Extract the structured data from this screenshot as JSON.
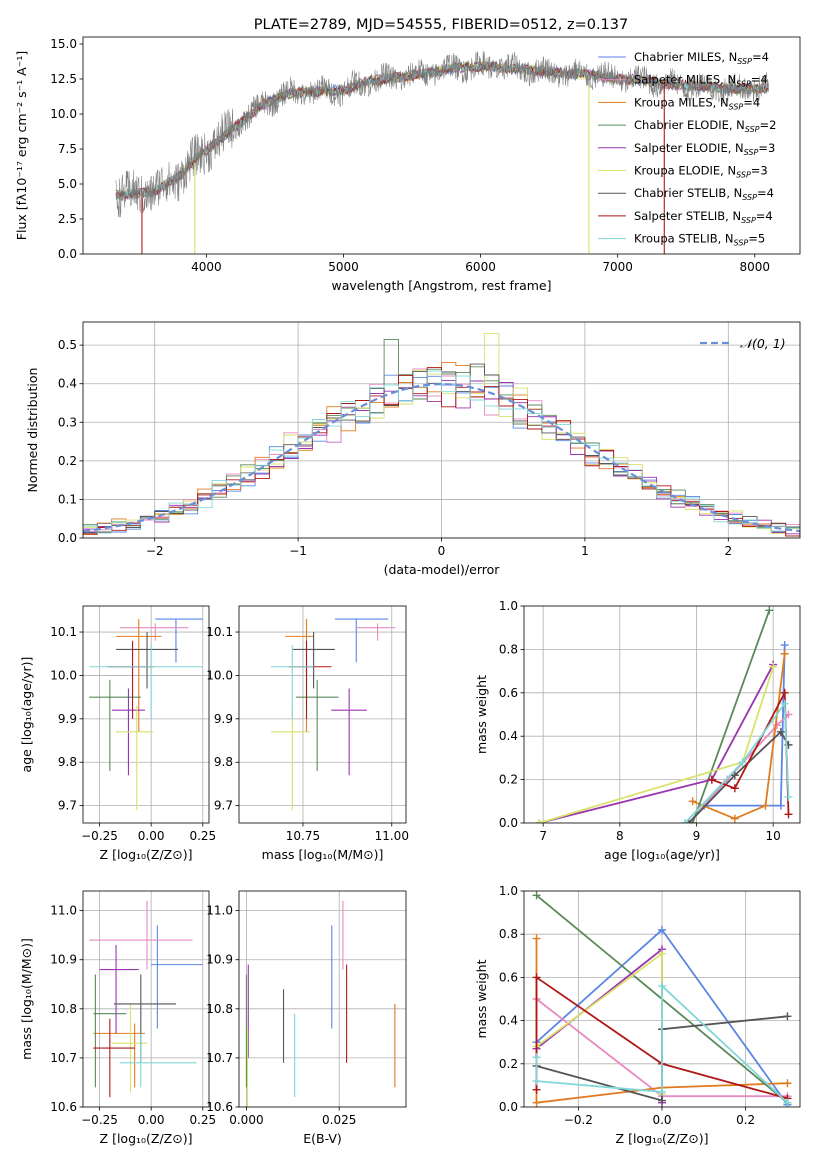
{
  "colors": {
    "Chabrier MILES": "#5b86e5",
    "Salpeter MILES": "#e88bc2",
    "Kroupa MILES": "#e07b20",
    "Chabrier ELODIE": "#5a8a5a",
    "Salpeter ELODIE": "#9a34b0",
    "Kroupa ELODIE": "#d9e26a",
    "Chabrier STELIB": "#555555",
    "Salpeter STELIB": "#b01818",
    "Kroupa STELIB": "#80d6d8",
    "normal": "#6a8fd8",
    "data": "#777777"
  },
  "chart_data": [
    {
      "panel": "spectrum",
      "type": "line",
      "title": "PLATE=2789, MJD=54555, FIBERID=0512, z=0.137",
      "xlabel": "wavelength [Angstrom, rest frame]",
      "ylabel": "Flux [f$_{\\lambda}$10$^{-17}$ erg cm$^{-2}$ s$^{-1}$ A$^{-1}$]",
      "ylabel_display": "Flux [fλ10⁻¹⁷ erg cm⁻² s⁻¹ A⁻¹]",
      "xlim": [
        3100,
        8330
      ],
      "ylim": [
        0,
        15.5
      ],
      "xticks": [
        4000,
        5000,
        6000,
        7000,
        8000
      ],
      "yticks": [
        0.0,
        2.5,
        5.0,
        7.5,
        10.0,
        12.5,
        15.0
      ],
      "legend_location": "upper right",
      "legend": [
        {
          "model": "Chabrier MILES",
          "label": "Chabrier MILES, N",
          "sub": "SSP",
          "n": "=4"
        },
        {
          "model": "Salpeter MILES",
          "label": "Salpeter MILES, N",
          "sub": "SSP",
          "n": "=4"
        },
        {
          "model": "Kroupa MILES",
          "label": "Kroupa MILES, N",
          "sub": "SSP",
          "n": "=4"
        },
        {
          "model": "Chabrier ELODIE",
          "label": "Chabrier ELODIE, N",
          "sub": "SSP",
          "n": "=2"
        },
        {
          "model": "Salpeter ELODIE",
          "label": "Salpeter ELODIE, N",
          "sub": "SSP",
          "n": "=3"
        },
        {
          "model": "Kroupa ELODIE",
          "label": "Kroupa ELODIE, N",
          "sub": "SSP",
          "n": "=3"
        },
        {
          "model": "Chabrier STELIB",
          "label": "Chabrier STELIB, N",
          "sub": "SSP",
          "n": "=4"
        },
        {
          "model": "Salpeter STELIB",
          "label": "Salpeter STELIB, N",
          "sub": "SSP",
          "n": "=4"
        },
        {
          "model": "Kroupa STELIB",
          "label": "Kroupa STELIB, N",
          "sub": "SSP",
          "n": "=5"
        }
      ],
      "data_range": [
        3340,
        8100
      ],
      "continuum": {
        "x": [
          3340,
          3600,
          3800,
          3900,
          4000,
          4200,
          4400,
          4600,
          4800,
          5000,
          5200,
          5400,
          5600,
          5800,
          6000,
          6200,
          6400,
          6600,
          6800,
          7000,
          7200,
          7400,
          7600,
          7800,
          8000,
          8100
        ],
        "y": [
          4.2,
          4.4,
          5.5,
          6.6,
          7.4,
          9.0,
          10.6,
          11.5,
          11.6,
          11.7,
          12.4,
          12.6,
          12.9,
          13.3,
          13.4,
          13.3,
          13.1,
          12.9,
          12.8,
          12.5,
          12.4,
          12.1,
          12.0,
          11.8,
          11.8,
          11.9
        ]
      },
      "spikes": [
        {
          "x": 3530,
          "y0": 0,
          "y1": 4.0,
          "color": "#b01818"
        },
        {
          "x": 3915,
          "y0": 0,
          "y1": 6.5,
          "color": "#d9e26a"
        },
        {
          "x": 6790,
          "y0": 0,
          "y1": 12.0,
          "color": "#d9e26a"
        },
        {
          "x": 7340,
          "y0": 0,
          "y1": 12.4,
          "color": "#b01818"
        }
      ]
    },
    {
      "panel": "residuals",
      "type": "histogram",
      "xlabel": "(data-model)/error",
      "ylabel": "Normed distribution",
      "xlim": [
        -2.5,
        2.5
      ],
      "ylim": [
        0,
        0.56
      ],
      "xticks": [
        -2,
        -1,
        0,
        1,
        2
      ],
      "yticks": [
        0.0,
        0.1,
        0.2,
        0.3,
        0.4,
        0.5
      ],
      "grid": true,
      "bin_width": 0.1,
      "legend_location": "upper right",
      "legend": [
        {
          "label": "𝒩(0, 1)",
          "style": "dashed",
          "color_key": "normal"
        }
      ],
      "reference_curve": "normal(0,1)"
    },
    {
      "panel": "age_vs_Z",
      "type": "errorbar",
      "xlabel": "Z [log₁₀(Z/Z⊙)]",
      "ylabel": "age  [log₁₀(age/yr)]",
      "xlim": [
        -0.33,
        0.28
      ],
      "ylim": [
        9.66,
        10.16
      ],
      "xticks": [
        -0.25,
        0.0,
        0.25
      ],
      "xticklabels": [
        "−0.25",
        "0.00",
        "0.25"
      ],
      "yticks": [
        9.7,
        9.8,
        9.9,
        10.0,
        10.1
      ],
      "grid": true,
      "points": [
        {
          "model": "Chabrier MILES",
          "x": 0.12,
          "xerr": [
            0.1,
            0.13
          ],
          "y": 10.13,
          "yerr": [
            0.1,
            0.0
          ]
        },
        {
          "model": "Salpeter MILES",
          "x": 0.02,
          "xerr": [
            0.17,
            0.16
          ],
          "y": 10.11,
          "yerr": [
            0.03,
            0.01
          ]
        },
        {
          "model": "Kroupa MILES",
          "x": -0.06,
          "xerr": [
            0.11,
            0.11
          ],
          "y": 10.09,
          "yerr": [
            0.22,
            0.04
          ]
        },
        {
          "model": "Chabrier ELODIE",
          "x": -0.2,
          "xerr": [
            0.1,
            0.15
          ],
          "y": 9.95,
          "yerr": [
            0.17,
            0.04
          ]
        },
        {
          "model": "Salpeter ELODIE",
          "x": -0.11,
          "xerr": [
            0.08,
            0.08
          ],
          "y": 9.92,
          "yerr": [
            0.15,
            0.05
          ]
        },
        {
          "model": "Kroupa ELODIE",
          "x": -0.07,
          "xerr": [
            0.1,
            0.08
          ],
          "y": 9.87,
          "yerr": [
            0.18,
            0.06
          ]
        },
        {
          "model": "Chabrier STELIB",
          "x": -0.02,
          "xerr": [
            0.15,
            0.15
          ],
          "y": 10.06,
          "yerr": [
            0.09,
            0.04
          ]
        },
        {
          "model": "Salpeter STELIB",
          "x": -0.09,
          "xerr": [
            0.12,
            0.1
          ],
          "y": 10.02,
          "yerr": [
            0.12,
            0.06
          ]
        },
        {
          "model": "Kroupa STELIB",
          "x": 0.0,
          "xerr": [
            0.3,
            0.25
          ],
          "y": 10.02,
          "yerr": [
            0.12,
            0.05
          ]
        }
      ]
    },
    {
      "panel": "age_vs_mass",
      "type": "errorbar",
      "xlabel": "mass [log₁₀(M/M⊙)]",
      "ylabel": "",
      "xlim": [
        10.57,
        11.04
      ],
      "ylim": [
        9.66,
        10.16
      ],
      "xticks": [
        10.75,
        11.0
      ],
      "xticklabels": [
        "10.75",
        "11.00"
      ],
      "yticks": [
        9.7,
        9.8,
        9.9,
        10.0,
        10.1
      ],
      "grid": true,
      "points": [
        {
          "model": "Chabrier MILES",
          "x": 10.9,
          "xerr": [
            0.06,
            0.09
          ],
          "y": 10.13,
          "yerr": [
            0.1,
            0.0
          ]
        },
        {
          "model": "Salpeter MILES",
          "x": 10.96,
          "xerr": [
            0.06,
            0.05
          ],
          "y": 10.11,
          "yerr": [
            0.03,
            0.01
          ]
        },
        {
          "model": "Kroupa MILES",
          "x": 10.76,
          "xerr": [
            0.06,
            0.02
          ],
          "y": 10.09,
          "yerr": [
            0.22,
            0.04
          ]
        },
        {
          "model": "Chabrier ELODIE",
          "x": 10.79,
          "xerr": [
            0.06,
            0.06
          ],
          "y": 9.95,
          "yerr": [
            0.17,
            0.04
          ]
        },
        {
          "model": "Salpeter ELODIE",
          "x": 10.88,
          "xerr": [
            0.05,
            0.05
          ],
          "y": 9.92,
          "yerr": [
            0.15,
            0.05
          ]
        },
        {
          "model": "Kroupa ELODIE",
          "x": 10.72,
          "xerr": [
            0.06,
            0.05
          ],
          "y": 9.87,
          "yerr": [
            0.18,
            0.06
          ]
        },
        {
          "model": "Chabrier STELIB",
          "x": 10.78,
          "xerr": [
            0.06,
            0.06
          ],
          "y": 10.06,
          "yerr": [
            0.09,
            0.04
          ]
        },
        {
          "model": "Salpeter STELIB",
          "x": 10.76,
          "xerr": [
            0.05,
            0.07
          ],
          "y": 10.02,
          "yerr": [
            0.12,
            0.06
          ]
        },
        {
          "model": "Kroupa STELIB",
          "x": 10.72,
          "xerr": [
            0.06,
            0.06
          ],
          "y": 10.02,
          "yerr": [
            0.12,
            0.05
          ]
        }
      ]
    },
    {
      "panel": "weight_vs_age",
      "type": "line",
      "xlabel": "age  [log₁₀(age/yr)]",
      "ylabel": "mass weight",
      "xlim": [
        6.75,
        10.35
      ],
      "ylim": [
        0,
        1.0
      ],
      "xticks": [
        7,
        8,
        9,
        10
      ],
      "yticks": [
        0.0,
        0.2,
        0.4,
        0.6,
        0.8,
        1.0
      ],
      "grid": true,
      "series": [
        {
          "model": "Chabrier MILES",
          "x": [
            8.9,
            9.1,
            10.1,
            10.15
          ],
          "y": [
            0.0,
            0.08,
            0.08,
            0.82
          ]
        },
        {
          "model": "Salpeter MILES",
          "x": [
            8.9,
            9.4,
            10.05,
            10.2
          ],
          "y": [
            0.0,
            0.2,
            0.45,
            0.5
          ]
        },
        {
          "model": "Kroupa MILES",
          "x": [
            8.95,
            9.5,
            9.9,
            10.15
          ],
          "y": [
            0.1,
            0.02,
            0.08,
            0.78
          ]
        },
        {
          "model": "Chabrier ELODIE",
          "x": [
            8.95,
            9.95
          ],
          "y": [
            0.0,
            0.98
          ]
        },
        {
          "model": "Salpeter ELODIE",
          "x": [
            6.95,
            9.2,
            10.0
          ],
          "y": [
            0.0,
            0.2,
            0.73
          ]
        },
        {
          "model": "Kroupa ELODIE",
          "x": [
            6.95,
            9.6,
            10.0
          ],
          "y": [
            0.0,
            0.28,
            0.72
          ]
        },
        {
          "model": "Chabrier STELIB",
          "x": [
            8.9,
            9.5,
            10.1,
            10.2
          ],
          "y": [
            0.0,
            0.22,
            0.42,
            0.36
          ]
        },
        {
          "model": "Salpeter STELIB",
          "x": [
            9.2,
            9.5,
            10.15,
            10.2
          ],
          "y": [
            0.2,
            0.16,
            0.6,
            0.04
          ]
        },
        {
          "model": "Kroupa STELIB",
          "x": [
            8.85,
            9.6,
            10.15,
            10.2
          ],
          "y": [
            0.0,
            0.28,
            0.55,
            0.12
          ]
        }
      ]
    },
    {
      "panel": "mass_vs_Z",
      "type": "errorbar",
      "xlabel": "Z [log₁₀(Z/Z⊙)]",
      "ylabel": "mass [log₁₀(M/M⊙)]",
      "xlim": [
        -0.33,
        0.28
      ],
      "ylim": [
        10.6,
        11.04
      ],
      "xticks": [
        -0.25,
        0.0,
        0.25
      ],
      "xticklabels": [
        "−0.25",
        "0.00",
        "0.25"
      ],
      "yticks": [
        10.6,
        10.7,
        10.8,
        10.9,
        11.0
      ],
      "yticklabels": [
        "10.6",
        "10.7",
        "10.8",
        "10.9",
        "11.0"
      ],
      "grid": true,
      "points": [
        {
          "model": "Chabrier MILES",
          "x": 0.03,
          "xerr": [
            0.03,
            0.22
          ],
          "y": 10.89,
          "yerr": [
            0.13,
            0.08
          ]
        },
        {
          "model": "Salpeter MILES",
          "x": -0.02,
          "xerr": [
            0.28,
            0.22
          ],
          "y": 10.94,
          "yerr": [
            0.06,
            0.08
          ]
        },
        {
          "model": "Kroupa MILES",
          "x": -0.08,
          "xerr": [
            0.2,
            0.05
          ],
          "y": 10.75,
          "yerr": [
            0.11,
            0.02
          ]
        },
        {
          "model": "Chabrier ELODIE",
          "x": -0.27,
          "xerr": [
            0.01,
            0.15
          ],
          "y": 10.79,
          "yerr": [
            0.15,
            0.08
          ]
        },
        {
          "model": "Salpeter ELODIE",
          "x": -0.17,
          "xerr": [
            0.08,
            0.11
          ],
          "y": 10.88,
          "yerr": [
            0.13,
            0.05
          ]
        },
        {
          "model": "Kroupa ELODIE",
          "x": -0.1,
          "xerr": [
            0.09,
            0.08
          ],
          "y": 10.73,
          "yerr": [
            0.1,
            0.08
          ]
        },
        {
          "model": "Chabrier STELIB",
          "x": -0.05,
          "xerr": [
            0.13,
            0.17
          ],
          "y": 10.81,
          "yerr": [
            0.12,
            0.06
          ]
        },
        {
          "model": "Salpeter STELIB",
          "x": -0.2,
          "xerr": [
            0.08,
            0.12
          ],
          "y": 10.72,
          "yerr": [
            0.1,
            0.06
          ]
        },
        {
          "model": "Kroupa STELIB",
          "x": -0.05,
          "xerr": [
            0.1,
            0.27
          ],
          "y": 10.69,
          "yerr": [
            0.05,
            0.06
          ]
        }
      ]
    },
    {
      "panel": "mass_vs_ebv",
      "type": "errorbar",
      "xlabel": "E(B-V)",
      "ylabel": "",
      "xlim": [
        -0.002,
        0.043
      ],
      "ylim": [
        10.6,
        11.04
      ],
      "xticks": [
        0.0,
        0.025
      ],
      "xticklabels": [
        "0.000",
        "0.025"
      ],
      "yticks": [
        10.6,
        10.7,
        10.8,
        10.9,
        11.0
      ],
      "yticklabels": [
        "10.6",
        "10.7",
        "10.8",
        "10.9",
        "11.0"
      ],
      "grid": true,
      "points": [
        {
          "model": "Chabrier MILES",
          "x": 0.023,
          "y": 10.89,
          "yerr": [
            0.13,
            0.08
          ]
        },
        {
          "model": "Salpeter MILES",
          "x": 0.026,
          "y": 10.94,
          "yerr": [
            0.06,
            0.08
          ]
        },
        {
          "model": "Kroupa MILES",
          "x": 0.04,
          "y": 10.75,
          "yerr": [
            0.11,
            0.06
          ]
        },
        {
          "model": "Chabrier ELODIE",
          "x": 0.0,
          "y": 10.79,
          "yerr": [
            0.15,
            0.08
          ]
        },
        {
          "model": "Salpeter ELODIE",
          "x": 0.0005,
          "y": 10.83,
          "yerr": [
            0.13,
            0.06
          ]
        },
        {
          "model": "Kroupa ELODIE",
          "x": 0.0003,
          "y": 10.7,
          "yerr": [
            0.1,
            0.06
          ]
        },
        {
          "model": "Chabrier STELIB",
          "x": 0.01,
          "y": 10.77,
          "yerr": [
            0.08,
            0.07
          ]
        },
        {
          "model": "Salpeter STELIB",
          "x": 0.027,
          "y": 10.77,
          "yerr": [
            0.08,
            0.12
          ]
        },
        {
          "model": "Kroupa STELIB",
          "x": 0.013,
          "y": 10.72,
          "yerr": [
            0.1,
            0.07
          ]
        }
      ]
    },
    {
      "panel": "weight_vs_Z",
      "type": "line",
      "xlabel": "Z [log₁₀(Z/Z⊙)]",
      "ylabel": "mass weight",
      "xlim": [
        -0.33,
        0.33
      ],
      "ylim": [
        0,
        1.0
      ],
      "xticks": [
        -0.2,
        0.0,
        0.2
      ],
      "xticklabels": [
        "−0.2",
        "0.0",
        "0.2"
      ],
      "yticks": [
        0.0,
        0.2,
        0.4,
        0.6,
        0.8,
        1.0
      ],
      "grid": true,
      "series": [
        {
          "model": "Chabrier MILES",
          "x": [
            -0.3,
            0.0,
            0.3
          ],
          "y": [
            0.3,
            0.82,
            0.01
          ]
        },
        {
          "model": "Salpeter MILES",
          "x": [
            -0.3,
            0.0,
            0.3
          ],
          "y": [
            0.5,
            0.05,
            0.05
          ]
        },
        {
          "model": "Kroupa MILES",
          "x": [
            -0.3,
            -0.3,
            0.0,
            0.3
          ],
          "y": [
            0.78,
            0.02,
            0.09,
            0.11
          ]
        },
        {
          "model": "Chabrier ELODIE",
          "x": [
            -0.3,
            0.3
          ],
          "y": [
            0.98,
            0.02
          ]
        },
        {
          "model": "Salpeter ELODIE",
          "x": [
            -0.3,
            0.0,
            0.0
          ],
          "y": [
            0.27,
            0.73,
            0.02
          ]
        },
        {
          "model": "Kroupa ELODIE",
          "x": [
            -0.3,
            0.0,
            0.0
          ],
          "y": [
            0.28,
            0.71,
            0.06
          ]
        },
        {
          "model": "Chabrier STELIB",
          "x": [
            0.3,
            0.0,
            0.0,
            -0.3
          ],
          "y": [
            0.42,
            0.36,
            0.03,
            0.19
          ]
        },
        {
          "model": "Salpeter STELIB",
          "x": [
            -0.3,
            -0.3,
            0.0,
            0.3
          ],
          "y": [
            0.08,
            0.6,
            0.2,
            0.04
          ]
        },
        {
          "model": "Kroupa STELIB",
          "x": [
            -0.3,
            -0.3,
            0.0,
            0.0,
            0.3
          ],
          "y": [
            0.23,
            0.12,
            0.07,
            0.56,
            0.02
          ]
        }
      ]
    }
  ]
}
